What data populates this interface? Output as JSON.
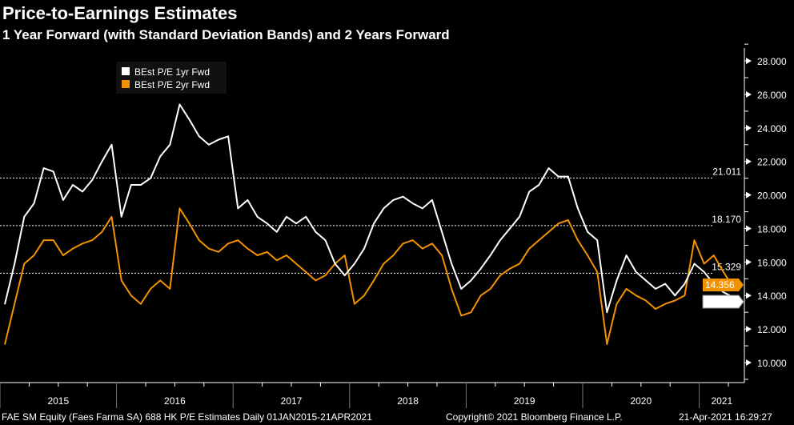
{
  "header": {
    "title": "Price-to-Earnings Estimates",
    "subtitle": "1 Year Forward (with Standard Deviation Bands) and 2 Years Forward"
  },
  "chart_data": {
    "type": "line",
    "x_unit": "month",
    "x_start": "2015-01",
    "x_tick_labels": [
      "2015",
      "2016",
      "2017",
      "2018",
      "2019",
      "2020",
      "2021"
    ],
    "ylim": [
      9,
      29
    ],
    "y_ticks": [
      "10.000",
      "12.000",
      "14.000",
      "16.000",
      "18.000",
      "20.000",
      "22.000",
      "24.000",
      "26.000",
      "28.000"
    ],
    "y_axis_side": "right",
    "legend_placement": "top-left",
    "series": [
      {
        "name": "BEst P/E 1yr Fwd",
        "color": "#ffffff",
        "last_value": "13.852",
        "values": [
          13.5,
          15.9,
          18.7,
          19.5,
          21.6,
          21.4,
          19.7,
          20.6,
          20.2,
          20.9,
          22.0,
          23.0,
          18.7,
          20.6,
          20.6,
          21.0,
          22.3,
          23.0,
          25.4,
          24.5,
          23.5,
          23.0,
          23.3,
          23.5,
          19.2,
          19.7,
          18.7,
          18.3,
          17.8,
          18.7,
          18.3,
          18.7,
          17.8,
          17.3,
          15.9,
          15.2,
          15.9,
          16.8,
          18.3,
          19.2,
          19.7,
          19.9,
          19.5,
          19.2,
          19.7,
          17.8,
          15.9,
          14.4,
          14.9,
          15.6,
          16.4,
          17.3,
          18.0,
          18.7,
          20.2,
          20.6,
          21.6,
          21.1,
          21.1,
          19.2,
          17.8,
          17.3,
          13.0,
          14.9,
          16.4,
          15.4,
          14.9,
          14.4,
          14.7,
          14.0,
          14.7,
          15.9,
          15.4,
          14.7,
          14.2,
          13.852
        ]
      },
      {
        "name": "BEst P/E 2yr Fwd",
        "color": "#f39200",
        "last_value": "14.356",
        "values": [
          11.1,
          13.5,
          15.9,
          16.4,
          17.3,
          17.3,
          16.4,
          16.8,
          17.1,
          17.3,
          17.8,
          18.7,
          14.9,
          14.0,
          13.5,
          14.4,
          14.9,
          14.4,
          19.2,
          18.3,
          17.3,
          16.8,
          16.6,
          17.1,
          17.3,
          16.8,
          16.4,
          16.6,
          16.1,
          16.4,
          15.9,
          15.4,
          14.9,
          15.2,
          15.9,
          16.4,
          13.5,
          14.0,
          14.9,
          15.9,
          16.4,
          17.1,
          17.3,
          16.8,
          17.1,
          16.4,
          14.4,
          12.8,
          13.0,
          14.0,
          14.4,
          15.2,
          15.6,
          15.9,
          16.8,
          17.3,
          17.8,
          18.3,
          18.5,
          17.3,
          16.4,
          15.4,
          11.1,
          13.5,
          14.4,
          14.0,
          13.7,
          13.2,
          13.5,
          13.7,
          14.0,
          17.3,
          15.9,
          16.4,
          15.4,
          14.356
        ]
      }
    ],
    "reference_lines": [
      {
        "value": 21.011,
        "label": "21.011"
      },
      {
        "value": 18.17,
        "label": "18.170"
      },
      {
        "value": 15.329,
        "label": "15.329"
      }
    ]
  },
  "footer": {
    "left": "FAE SM Equity (Faes Farma SA) 688 HK P/E Estimates  Daily 01JAN2015-21APR2021",
    "center": "Copyright© 2021 Bloomberg Finance L.P.",
    "right": "21-Apr-2021 16:29:27"
  }
}
